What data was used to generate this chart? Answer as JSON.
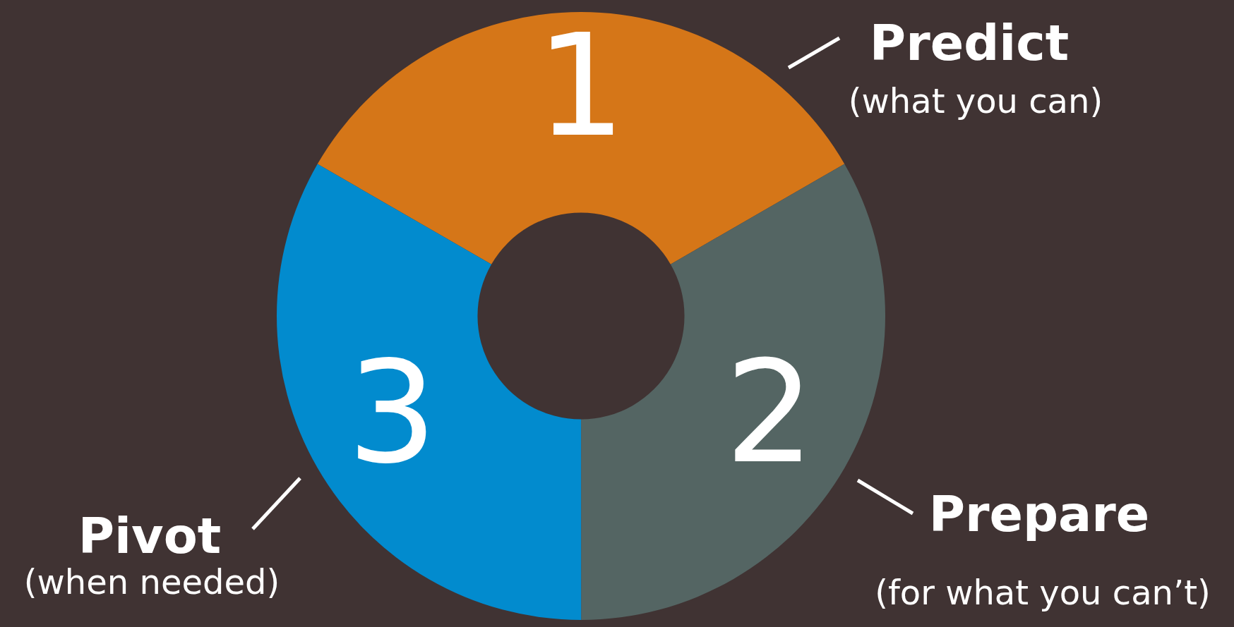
{
  "chart_data": {
    "type": "donut",
    "categories": [
      "Predict",
      "Prepare",
      "Pivot"
    ],
    "values": [
      33.33,
      33.33,
      33.34
    ],
    "colors": [
      "#d57618",
      "#546563",
      "#028bce"
    ],
    "annotations": [
      {
        "text": "1",
        "x": "Predict"
      },
      {
        "text": "(what you can)",
        "x": "Predict"
      },
      {
        "text": "2",
        "x": "Prepare"
      },
      {
        "text": "(for what you can’t)",
        "x": "Prepare"
      },
      {
        "text": "3",
        "x": "Pivot"
      },
      {
        "text": "(when needed)",
        "x": "Pivot"
      }
    ],
    "legend": false
  }
}
